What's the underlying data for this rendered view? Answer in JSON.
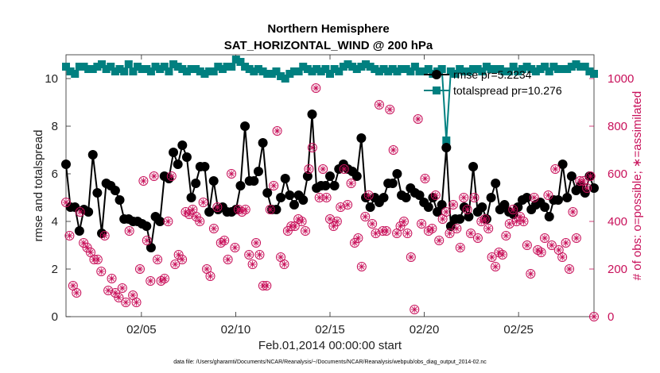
{
  "chart_data": {
    "type": "line",
    "title": "Northern Hemisphere",
    "subtitle": "SAT_HORIZONTAL_WIND @ 200 hPa",
    "xlabel": "Feb.01,2014 00:00:00 start",
    "ylabel": "rmse and totalspread",
    "y2label": "# of obs: o=possible; ∗=assimilated",
    "footnote": "data file: /Users/gharamti/Documents/NCAR/Reanalysis/~/Documents/NCAR/Reanalysis/webpub/obs_diag_output_2014-02.nc",
    "xlim": [
      1,
      29
    ],
    "ylim": [
      0,
      11
    ],
    "y2lim": [
      0,
      1100
    ],
    "xticks": [
      5,
      10,
      15,
      20,
      25
    ],
    "xtick_labels": [
      "02/05",
      "02/10",
      "02/15",
      "02/20",
      "02/25"
    ],
    "yticks": [
      0,
      2,
      4,
      6,
      8,
      10
    ],
    "y2ticks": [
      0,
      200,
      400,
      600,
      800,
      1000
    ],
    "legend_position": "top-right",
    "colors": {
      "rmse": "#000000",
      "totalspread": "#008080",
      "obs": "#c8105a"
    },
    "series": [
      {
        "name": "rmse pr=5.2234",
        "axis": "left",
        "marker": "circle",
        "values": [
          6.4,
          4.6,
          4.6,
          3.6,
          4.5,
          4.4,
          6.8,
          5.2,
          3.5,
          5.6,
          5.5,
          5.3,
          4.9,
          4.1,
          4.1,
          4.0,
          4.0,
          3.9,
          3.8,
          2.9,
          4.2,
          4.0,
          5.9,
          5.8,
          6.9,
          6.4,
          7.2,
          6.7,
          5.0,
          5.6,
          6.3,
          6.3,
          4.4,
          5.7,
          4.5,
          4.6,
          4.4,
          4.4,
          4.5,
          5.5,
          8.0,
          5.7,
          5.7,
          6.1,
          7.3,
          5.2,
          4.5,
          4.5,
          5.0,
          5.8,
          5.1,
          4.7,
          5.1,
          4.9,
          5.9,
          8.5,
          5.4,
          5.5,
          5.5,
          5.9,
          5.5,
          6.2,
          6.4,
          6.2,
          6.1,
          5.9,
          7.5,
          5.0,
          4.6,
          5.0,
          4.8,
          5.0,
          5.6,
          5.6,
          6.0,
          5.1,
          5.0,
          5.4,
          5.2,
          5.1,
          4.8,
          4.6,
          5.0,
          4.4,
          4.7,
          7.1,
          3.8,
          4.1,
          4.1,
          4.6,
          4.2,
          6.3,
          4.4,
          4.6,
          4.1,
          5.0,
          5.6,
          4.5,
          4.7,
          4.4,
          4.3,
          4.6,
          4.9,
          5.0,
          4.5,
          4.7,
          4.8,
          4.6,
          4.2,
          4.9,
          4.9,
          6.4,
          5.0,
          5.9,
          5.3,
          5.5,
          5.2,
          5.9,
          5.4
        ]
      },
      {
        "name": "totalspread pr=10.276",
        "axis": "left",
        "marker": "square",
        "values": [
          10.5,
          10.3,
          10.2,
          10.5,
          10.5,
          10.4,
          10.4,
          10.5,
          10.6,
          10.4,
          10.5,
          10.3,
          10.4,
          10.3,
          10.6,
          10.3,
          10.5,
          10.4,
          10.4,
          10.3,
          10.5,
          10.4,
          10.5,
          10.3,
          10.6,
          10.5,
          10.4,
          10.3,
          10.4,
          10.4,
          10.3,
          10.2,
          10.3,
          10.3,
          10.5,
          10.4,
          10.5,
          10.5,
          10.8,
          10.7,
          10.5,
          10.4,
          10.3,
          10.4,
          10.3,
          10.2,
          10.2,
          10.3,
          10.1,
          10.0,
          10.2,
          10.3,
          10.3,
          10.5,
          10.4,
          10.3,
          10.4,
          10.3,
          10.4,
          10.2,
          10.4,
          10.3,
          10.5,
          10.6,
          10.5,
          10.4,
          10.5,
          10.6,
          10.5,
          10.4,
          10.3,
          10.4,
          10.3,
          10.4,
          10.3,
          10.4,
          10.4,
          10.3,
          10.5,
          10.3,
          10.3,
          10.4,
          10.2,
          10.3,
          10.4,
          7.4,
          10.3,
          10.2,
          10.4,
          10.3,
          10.3,
          10.4,
          10.4,
          10.3,
          10.5,
          10.4,
          10.4,
          10.4,
          10.3,
          10.3,
          10.5,
          10.3,
          10.4,
          10.5,
          10.4,
          10.3,
          10.4,
          10.5,
          10.3,
          10.5,
          10.4,
          10.4,
          10.4,
          10.5,
          10.6,
          10.5,
          10.5,
          10.3,
          10.2
        ]
      },
      {
        "name": "# of obs assimilated",
        "axis": "right",
        "marker": "circle-star",
        "values": [
          480,
          340,
          130,
          100,
          440,
          310,
          290,
          270,
          240,
          240,
          190,
          340,
          110,
          160,
          100,
          80,
          120,
          60,
          360,
          90,
          60,
          200,
          570,
          320,
          150,
          590,
          240,
          150,
          160,
          400,
          590,
          220,
          260,
          240,
          440,
          430,
          450,
          420,
          400,
          480,
          200,
          170,
          370,
          460,
          310,
          320,
          240,
          600,
          290,
          450,
          440,
          450,
          260,
          220,
          310,
          260,
          130,
          130,
          450,
          550,
          780,
          250,
          220,
          360,
          380,
          380,
          410,
          400,
          360,
          620,
          710,
          960,
          500,
          620,
          500,
          410,
          380,
          400,
          460,
          620,
          470,
          560,
          310,
          330,
          210,
          420,
          510,
          390,
          350,
          890,
          360,
          360,
          870,
          700,
          350,
          380,
          400,
          350,
          250,
          30,
          830,
          390,
          580,
          360,
          370,
          510,
          320,
          410,
          440,
          350,
          470,
          370,
          290,
          500,
          450,
          350,
          500,
          330,
          400,
          410,
          370,
          250,
          210,
          270,
          260,
          340,
          390,
          450,
          400,
          420,
          400,
          300,
          180,
          500,
          280,
          270,
          330,
          510,
          300,
          620,
          280,
          250,
          310,
          200,
          440,
          330,
          570,
          570,
          540,
          590,
          0
        ]
      }
    ]
  }
}
